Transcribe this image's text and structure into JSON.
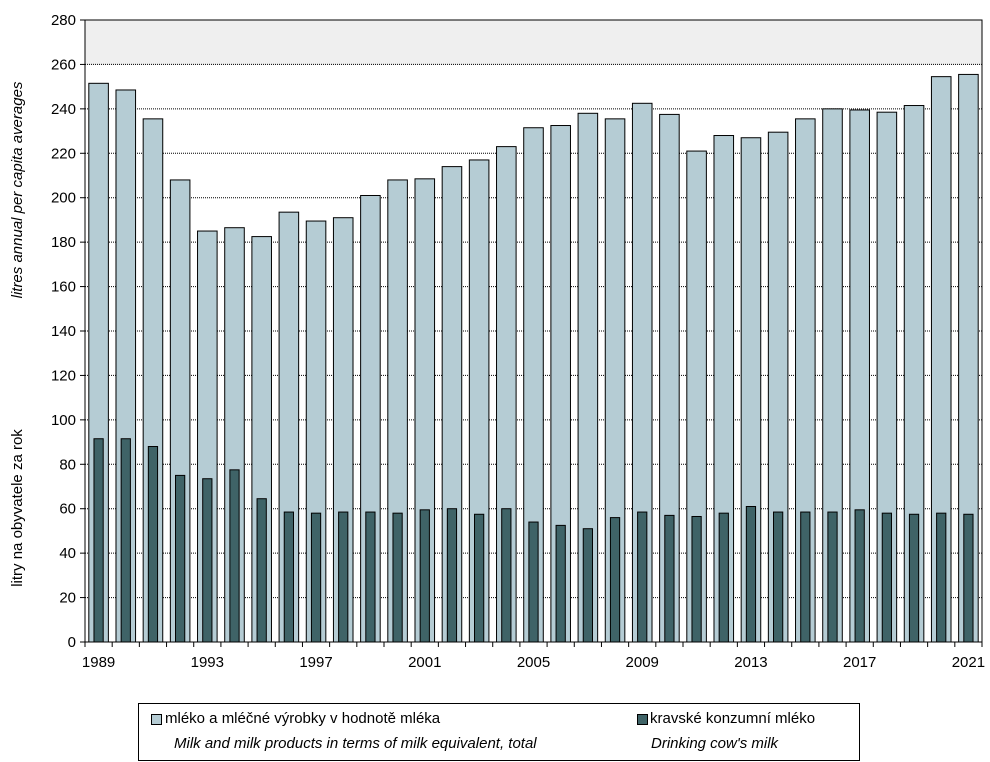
{
  "chart_data": {
    "type": "bar",
    "title": "",
    "ylabel_en": "litres annual per capita averages",
    "ylabel_cz": "litry  na obyvatele za rok",
    "xlabel": "",
    "ylim": [
      0,
      280
    ],
    "yticks": [
      0,
      20,
      40,
      60,
      80,
      100,
      120,
      140,
      160,
      180,
      200,
      220,
      240,
      260,
      280
    ],
    "categories": [
      1989,
      1990,
      1991,
      1992,
      1993,
      1994,
      1995,
      1996,
      1997,
      1998,
      1999,
      2000,
      2001,
      2002,
      2003,
      2004,
      2005,
      2006,
      2007,
      2008,
      2009,
      2010,
      2011,
      2012,
      2013,
      2014,
      2015,
      2016,
      2017,
      2018,
      2019,
      2020,
      2021
    ],
    "xtick_labels": [
      "1989",
      "1993",
      "1997",
      "2001",
      "2005",
      "2009",
      "2013",
      "2017",
      "2021"
    ],
    "grid": true,
    "legend_position": "bottom",
    "series": [
      {
        "name_cz": "mléko a mléčné výrobky v hodnotě mléka",
        "name_en": "Milk and milk products in terms of milk equivalent, total",
        "color": "#b5ccd4",
        "values": [
          251.5,
          248.5,
          235.5,
          208,
          185,
          186.5,
          182.5,
          193.5,
          189.5,
          191,
          201,
          208,
          208.5,
          214,
          217,
          223,
          231.5,
          232.5,
          238,
          235.5,
          242.5,
          237.5,
          221,
          228,
          227,
          229.5,
          235.5,
          240,
          239.5,
          238.5,
          241.5,
          254.5,
          255.5
        ]
      },
      {
        "name_cz": "kravské konzumní mléko",
        "name_en": "Drinking cow's milk",
        "color": "#3f6367",
        "values": [
          91.5,
          91.5,
          88,
          75,
          73.5,
          77.5,
          64.5,
          58.5,
          58,
          58.5,
          58.5,
          58,
          59.5,
          60,
          57.5,
          60,
          54,
          52.5,
          51,
          56,
          58.5,
          57,
          56.5,
          58,
          61,
          58.5,
          58.5,
          58.5,
          59.5,
          58,
          57.5,
          58,
          57.5
        ]
      }
    ]
  }
}
